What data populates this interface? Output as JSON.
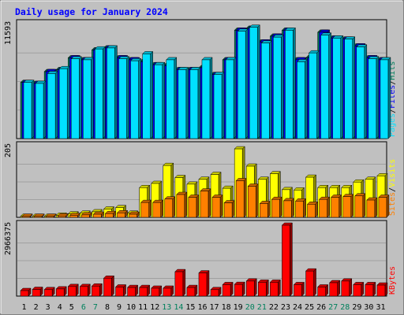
{
  "chart_data": {
    "title": "Daily usage for January 2024",
    "days": [
      "1",
      "2",
      "3",
      "4",
      "5",
      "6",
      "7",
      "8",
      "9",
      "10",
      "11",
      "12",
      "13",
      "14",
      "15",
      "16",
      "17",
      "18",
      "19",
      "20",
      "21",
      "22",
      "23",
      "24",
      "25",
      "26",
      "27",
      "28",
      "29",
      "30",
      "31"
    ],
    "weekend_days": [
      "6",
      "7",
      "13",
      "14",
      "20",
      "21",
      "27",
      "28"
    ],
    "colors": {
      "hits": "#00805c",
      "files": "#0000ff",
      "pages": "#00e0ff",
      "visits": "#ffff00",
      "sites": "#ff8000",
      "kbytes": "#ff0000",
      "weekend_label": "#00805c",
      "title": "#0000ff",
      "plot_bg": "#c0c0c0",
      "grid": "#a0a0a0"
    },
    "panels": [
      {
        "type": "bar",
        "ymax_label": "11593",
        "ylim": [
          0,
          11593
        ],
        "legend": [
          "Pages",
          "/",
          "Files",
          "/",
          "Hits"
        ],
        "grid": true,
        "series": [
          {
            "name": "Hits",
            "values": [
              5700,
              5600,
              6800,
              7000,
              8200,
              8000,
              9000,
              9200,
              8200,
              8000,
              7800,
              7500,
              7400,
              7000,
              7000,
              7200,
              6500,
              8000,
              11000,
              11200,
              9800,
              10400,
              11000,
              8000,
              8200,
              10800,
              10200,
              10100,
              9400,
              8200,
              8000
            ]
          },
          {
            "name": "Files",
            "values": [
              5700,
              5600,
              6800,
              7000,
              8200,
              8000,
              9000,
              9200,
              8200,
              8000,
              7800,
              7500,
              7400,
              7000,
              7000,
              7200,
              6500,
              8000,
              11000,
              11200,
              9800,
              10400,
              11000,
              8000,
              8200,
              10800,
              10200,
              10100,
              9400,
              8200,
              8000
            ]
          },
          {
            "name": "Pages",
            "values": [
              5700,
              5600,
              6600,
              7100,
              8100,
              8000,
              9100,
              9200,
              8100,
              7900,
              8600,
              7500,
              8000,
              7000,
              7000,
              8000,
              6500,
              8000,
              10900,
              11300,
              9700,
              10300,
              11000,
              7800,
              8700,
              10500,
              10200,
              10100,
              9300,
              8100,
              8000
            ]
          }
        ]
      },
      {
        "type": "bar",
        "ymax_label": "205",
        "ylim": [
          0,
          205
        ],
        "legend": [
          "Sites",
          "/",
          "Visits"
        ],
        "grid": true,
        "series": [
          {
            "name": "Visits",
            "values": [
              3,
              3,
              3,
              6,
              10,
              12,
              16,
              24,
              28,
              12,
              86,
              98,
              150,
              115,
              96,
              110,
              124,
              84,
              198,
              148,
              110,
              126,
              80,
              79,
              116,
              86,
              86,
              86,
              102,
              110,
              120
            ]
          },
          {
            "name": "Sites",
            "values": [
              3,
              3,
              3,
              4,
              5,
              7,
              9,
              11,
              13,
              9,
              43,
              43,
              53,
              66,
              58,
              76,
              58,
              42,
              106,
              90,
              40,
              52,
              48,
              47,
              38,
              52,
              58,
              60,
              62,
              50,
              58
            ]
          }
        ]
      },
      {
        "type": "bar",
        "ymax_label": "2966375",
        "ylim": [
          0,
          2966375
        ],
        "legend": [
          "KBytes"
        ],
        "grid": true,
        "series": [
          {
            "name": "KBytes",
            "values": [
              230000,
              280000,
              270000,
              300000,
              400000,
              400000,
              420000,
              750000,
              380000,
              360000,
              360000,
              330000,
              330000,
              1020000,
              360000,
              970000,
              270000,
              480000,
              490000,
              630000,
              580000,
              580000,
              2966375,
              480000,
              1050000,
              380000,
              560000,
              630000,
              480000,
              480000,
              460000
            ]
          }
        ]
      }
    ]
  }
}
